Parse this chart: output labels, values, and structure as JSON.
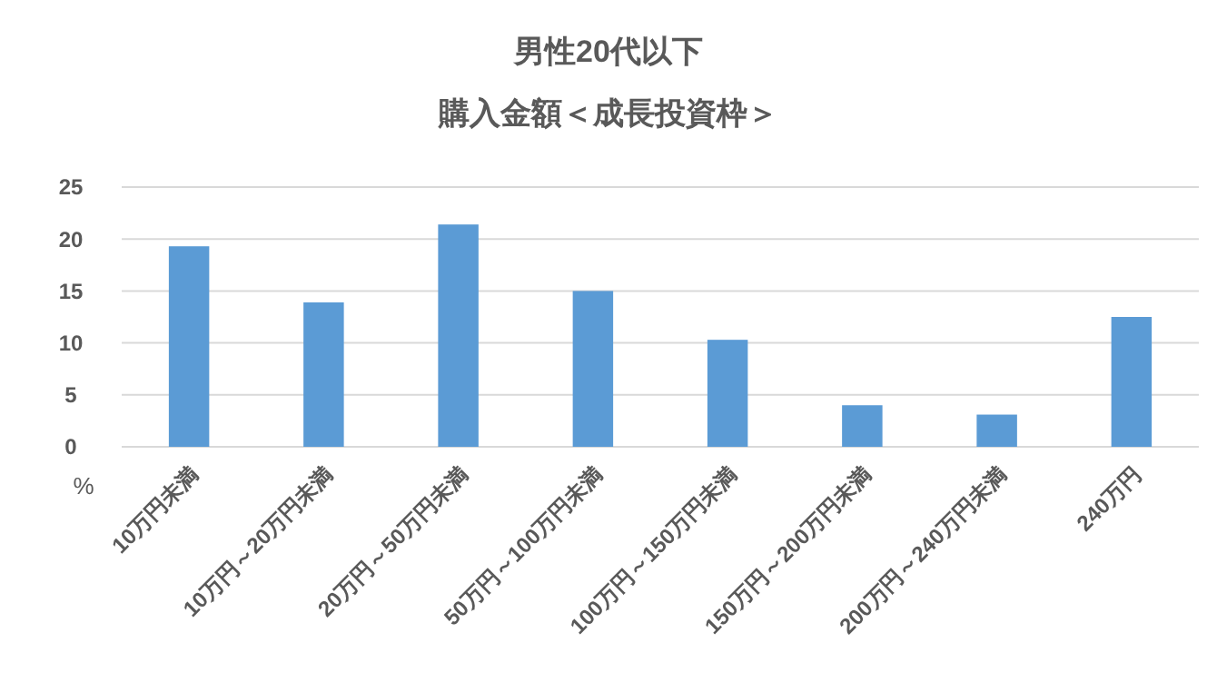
{
  "chart_data": {
    "type": "bar",
    "title": "男性20代以下",
    "subtitle": "購入金額＜成長投資枠＞",
    "ylabel": "%",
    "categories": [
      "10万円未満",
      "10万円～20万円未満",
      "20万円～50万円未満",
      "50万円～100万円未満",
      "100万円～150万円未満",
      "150万円～200万円未満",
      "200万円～240万円未満",
      "240万円"
    ],
    "values": [
      19.3,
      13.9,
      21.4,
      15.0,
      10.3,
      4.0,
      3.1,
      12.5
    ],
    "color": "#5b9bd5",
    "ylim": [
      0,
      25
    ],
    "yticks": [
      0,
      5,
      10,
      15,
      20,
      25
    ],
    "grid": "y"
  }
}
